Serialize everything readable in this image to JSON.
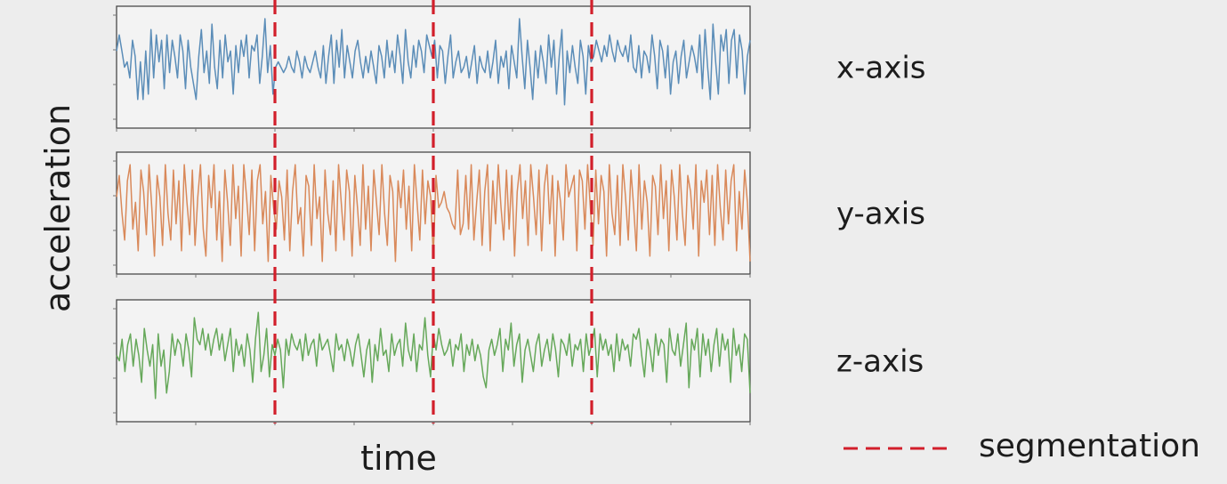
{
  "chart_data": {
    "type": "line",
    "xlabel": "time",
    "ylabel": "acceleration",
    "x_range": [
      0,
      240
    ],
    "segment_boundaries": [
      60,
      120,
      180
    ],
    "series": [
      {
        "name": "x-axis",
        "color": "#5b8db8",
        "ylim": [
          -1,
          1
        ],
        "values": [
          0.3,
          0.6,
          0.3,
          0.0,
          0.1,
          -0.2,
          0.5,
          0.2,
          -0.6,
          0.1,
          -0.6,
          0.3,
          -0.5,
          0.7,
          -0.2,
          0.6,
          0.1,
          0.5,
          -0.4,
          0.6,
          -0.1,
          0.5,
          0.2,
          -0.2,
          0.6,
          0.3,
          -0.4,
          0.5,
          0.0,
          -0.3,
          -0.6,
          0.2,
          0.7,
          -0.1,
          0.3,
          -0.3,
          0.8,
          0.0,
          -0.4,
          0.5,
          -0.2,
          0.6,
          0.1,
          0.3,
          -0.5,
          0.4,
          -0.1,
          0.5,
          0.2,
          0.6,
          -0.2,
          0.4,
          0.3,
          0.6,
          -0.3,
          0.2,
          0.9,
          -0.1,
          0.4,
          -0.5,
          0.0,
          0.1,
          0.0,
          -0.1,
          0.0,
          0.2,
          0.0,
          -0.1,
          0.3,
          0.1,
          -0.2,
          0.2,
          0.0,
          -0.1,
          0.1,
          0.3,
          0.0,
          -0.2,
          0.4,
          -0.3,
          0.2,
          0.6,
          -0.3,
          0.5,
          0.0,
          0.7,
          -0.2,
          0.4,
          0.1,
          -0.2,
          0.3,
          0.5,
          0.1,
          -0.2,
          0.2,
          -0.1,
          0.3,
          0.0,
          -0.3,
          0.4,
          0.2,
          -0.2,
          0.5,
          0.0,
          0.3,
          -0.1,
          0.6,
          0.2,
          -0.3,
          0.7,
          0.1,
          -0.2,
          0.4,
          0.0,
          0.5,
          0.3,
          -0.1,
          0.6,
          0.4,
          0.2,
          0.5,
          -0.2,
          0.4,
          0.3,
          -0.3,
          0.2,
          0.6,
          -0.2,
          0.1,
          0.3,
          -0.1,
          0.0,
          0.2,
          -0.2,
          0.1,
          0.4,
          -0.3,
          0.2,
          0.0,
          -0.1,
          0.3,
          -0.2,
          0.1,
          0.5,
          -0.3,
          0.2,
          0.0,
          0.3,
          -0.4,
          0.4,
          0.1,
          -0.2,
          0.9,
          0.2,
          -0.4,
          0.5,
          0.0,
          -0.6,
          0.3,
          -0.2,
          0.4,
          0.1,
          -0.3,
          0.6,
          0.0,
          0.5,
          -0.5,
          0.2,
          0.7,
          -0.7,
          0.3,
          -0.1,
          0.4,
          0.0,
          -0.3,
          0.5,
          0.2,
          -0.5,
          0.4,
          0.1,
          0.2,
          0.5,
          0.3,
          0.1,
          0.4,
          0.2,
          0.6,
          0.3,
          0.1,
          0.5,
          0.3,
          0.2,
          0.4,
          0.1,
          0.6,
          0.0,
          -0.1,
          0.4,
          -0.2,
          0.3,
          0.2,
          -0.1,
          0.6,
          0.2,
          -0.4,
          0.5,
          0.3,
          -0.2,
          0.4,
          -0.5,
          0.1,
          0.3,
          -0.3,
          0.2,
          0.5,
          -0.2,
          0.1,
          0.4,
          0.2,
          -0.1,
          0.6,
          -0.4,
          0.7,
          0.0,
          -0.6,
          0.8,
          0.1,
          -0.5,
          0.6,
          0.3,
          0.7,
          -0.3,
          0.5,
          0.7,
          -0.2,
          0.6,
          0.3,
          -0.5,
          0.2,
          0.5
        ]
      },
      {
        "name": "y-axis",
        "color": "#d9895a",
        "ylim": [
          -1,
          1
        ],
        "values": [
          0.3,
          0.7,
          0.0,
          -0.5,
          0.6,
          0.9,
          -0.3,
          0.2,
          -0.7,
          0.8,
          0.4,
          -0.4,
          0.9,
          0.1,
          -0.8,
          0.7,
          0.3,
          -0.6,
          0.9,
          0.0,
          -0.5,
          0.8,
          -0.2,
          0.6,
          -0.7,
          0.9,
          0.2,
          -0.4,
          0.8,
          -0.6,
          0.3,
          0.9,
          -0.3,
          -0.8,
          0.7,
          0.1,
          0.9,
          -0.5,
          0.4,
          -0.9,
          0.8,
          0.2,
          -0.6,
          0.9,
          -0.1,
          0.5,
          -0.8,
          0.9,
          0.3,
          -0.4,
          0.8,
          -0.7,
          0.6,
          0.9,
          -0.2,
          0.4,
          -0.9,
          0.7,
          0.1,
          -0.3,
          0.6,
          0.3,
          -0.5,
          0.8,
          -0.7,
          0.4,
          0.9,
          -0.2,
          0.1,
          -0.8,
          0.7,
          0.5,
          -0.6,
          0.9,
          -0.1,
          0.3,
          -0.9,
          0.8,
          0.0,
          -0.4,
          0.6,
          -0.7,
          0.9,
          0.2,
          -0.5,
          0.8,
          0.4,
          -0.8,
          0.7,
          0.1,
          -0.6,
          0.9,
          -0.3,
          0.5,
          -0.7,
          0.8,
          0.2,
          -0.4,
          0.9,
          0.0,
          -0.6,
          0.7,
          0.4,
          -0.9,
          0.6,
          0.1,
          0.8,
          -0.3,
          0.5,
          -0.7,
          0.9,
          0.2,
          -0.5,
          0.8,
          -0.2,
          0.6,
          0.3,
          -0.8,
          0.7,
          0.1,
          0.2,
          0.4,
          0.1,
          0.0,
          -0.2,
          -0.3,
          0.8,
          -0.4,
          -0.2,
          0.7,
          -0.3,
          0.9,
          -0.5,
          0.2,
          0.8,
          -0.6,
          0.4,
          0.9,
          -0.7,
          0.6,
          -0.2,
          0.9,
          0.1,
          -0.5,
          0.8,
          -0.3,
          0.7,
          -0.8,
          0.4,
          0.9,
          -0.1,
          0.6,
          -0.6,
          0.9,
          0.3,
          -0.4,
          0.8,
          -0.7,
          0.5,
          0.9,
          -0.2,
          0.7,
          -0.8,
          0.6,
          0.2,
          -0.5,
          0.9,
          0.3,
          0.5,
          0.7,
          -0.7,
          0.8,
          0.6,
          -0.3,
          0.9,
          0.1,
          -0.6,
          0.8,
          -0.2,
          0.7,
          0.4,
          -0.8,
          0.9,
          0.0,
          -0.4,
          0.7,
          -0.6,
          0.9,
          0.3,
          -0.5,
          0.8,
          0.1,
          -0.7,
          0.9,
          -0.3,
          0.6,
          0.2,
          -0.8,
          0.7,
          0.5,
          -0.4,
          0.9,
          -0.1,
          0.6,
          -0.7,
          0.8,
          0.3,
          -0.5,
          0.9,
          0.0,
          -0.6,
          0.7,
          0.4,
          -0.3,
          0.9,
          -0.8,
          0.6,
          0.2,
          0.8,
          -0.4,
          0.7,
          -0.6,
          0.9,
          0.1,
          -0.5,
          0.8,
          -0.2,
          0.6,
          0.9,
          -0.7,
          0.4,
          -0.3,
          0.8,
          0.2,
          -0.9
        ]
      },
      {
        "name": "z-axis",
        "color": "#66a85a",
        "ylim": [
          -1,
          1
        ],
        "values": [
          0.1,
          0.0,
          0.4,
          -0.2,
          0.3,
          0.5,
          -0.1,
          0.4,
          0.1,
          -0.4,
          0.6,
          0.2,
          -0.1,
          0.3,
          -0.7,
          0.5,
          -0.1,
          0.2,
          -0.6,
          -0.2,
          0.5,
          0.1,
          0.4,
          0.3,
          -0.1,
          0.5,
          0.2,
          -0.3,
          0.8,
          0.4,
          0.3,
          0.6,
          0.2,
          0.5,
          0.1,
          0.4,
          0.6,
          0.2,
          0.5,
          0.0,
          0.3,
          0.6,
          -0.2,
          0.4,
          0.1,
          0.3,
          -0.1,
          0.5,
          0.2,
          -0.4,
          0.4,
          0.9,
          -0.2,
          0.1,
          0.6,
          -0.3,
          0.3,
          0.1,
          0.4,
          0.2,
          -0.5,
          0.4,
          0.1,
          0.5,
          0.3,
          0.2,
          0.4,
          0.0,
          0.5,
          0.1,
          0.3,
          0.4,
          -0.1,
          0.5,
          0.2,
          0.3,
          0.4,
          0.1,
          -0.2,
          0.5,
          0.2,
          0.3,
          0.0,
          0.4,
          0.2,
          -0.1,
          0.3,
          0.5,
          0.1,
          -0.3,
          0.2,
          0.4,
          -0.4,
          0.3,
          0.0,
          0.6,
          0.1,
          0.2,
          -0.2,
          0.5,
          0.1,
          0.3,
          0.4,
          -0.1,
          0.7,
          0.2,
          0.0,
          0.5,
          -0.2,
          0.3,
          0.2,
          0.8,
          0.1,
          -0.3,
          0.5,
          0.2,
          0.6,
          0.3,
          0.1,
          0.2,
          0.4,
          -0.1,
          0.3,
          0.2,
          0.5,
          -0.2,
          0.3,
          0.1,
          0.4,
          0.0,
          0.3,
          0.1,
          -0.3,
          -0.5,
          0.2,
          0.4,
          0.1,
          0.3,
          0.6,
          -0.2,
          0.4,
          0.2,
          0.7,
          -0.1,
          0.3,
          0.5,
          -0.4,
          0.2,
          0.4,
          0.1,
          -0.2,
          0.3,
          0.5,
          -0.1,
          0.2,
          0.4,
          0.0,
          0.5,
          0.2,
          -0.3,
          0.4,
          0.3,
          0.1,
          0.5,
          -0.1,
          0.3,
          0.2,
          0.4,
          -0.2,
          0.5,
          0.1,
          0.3,
          0.6,
          -0.3,
          0.5,
          0.2,
          0.4,
          0.1,
          0.3,
          -0.2,
          0.5,
          0.0,
          0.4,
          0.2,
          0.3,
          -0.1,
          0.5,
          0.4,
          0.6,
          0.1,
          -0.3,
          0.4,
          0.2,
          -0.2,
          0.5,
          0.1,
          0.4,
          0.3,
          -0.4,
          0.6,
          0.2,
          0.1,
          0.5,
          -0.1,
          0.3,
          0.7,
          -0.5,
          0.4,
          0.2,
          0.6,
          -0.3,
          0.5,
          0.1,
          0.4,
          -0.2,
          0.3,
          0.6,
          -0.1,
          0.5,
          0.2,
          0.4,
          -0.4,
          0.6,
          0.1,
          0.3,
          -0.2,
          0.5,
          0.4,
          -0.6
        ]
      }
    ],
    "legend": [
      {
        "label": "segmentation",
        "style": "dashed",
        "color": "#d21f2b"
      }
    ]
  }
}
